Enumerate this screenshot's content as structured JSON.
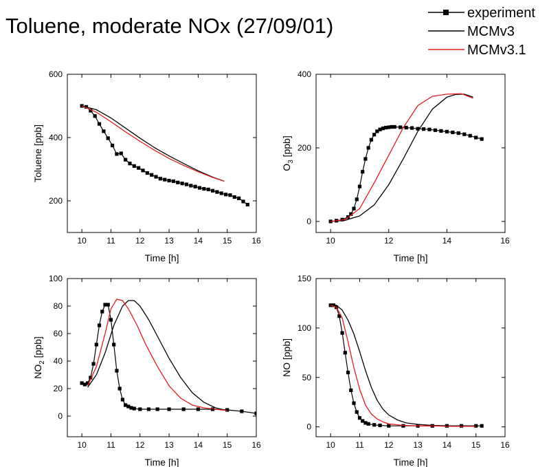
{
  "title": "Toluene, moderate NOx (27/09/01)",
  "legend": {
    "position": "top-right",
    "entries": [
      {
        "label": "experiment",
        "color": "#000000",
        "marker": "square"
      },
      {
        "label": "MCMv3",
        "color": "#000000",
        "marker": "none"
      },
      {
        "label": "MCMv3.1",
        "color": "#e41a1c",
        "marker": "none"
      }
    ]
  },
  "chart_data": [
    {
      "type": "line",
      "xlabel": "Time [h]",
      "ylabel": "Toluene [ppb]",
      "xlim": [
        9.5,
        16
      ],
      "ylim": [
        100,
        600
      ],
      "xticks": [
        10,
        11,
        12,
        13,
        14,
        15,
        16
      ],
      "yticks": [
        200,
        400,
        600
      ],
      "series": [
        {
          "name": "experiment",
          "color": "#000000",
          "marker": "square",
          "x": [
            10.0,
            10.15,
            10.3,
            10.45,
            10.6,
            10.75,
            10.9,
            11.05,
            11.2,
            11.35,
            11.5,
            11.65,
            11.8,
            11.95,
            12.1,
            12.25,
            12.4,
            12.55,
            12.7,
            12.85,
            13.0,
            13.15,
            13.3,
            13.45,
            13.6,
            13.75,
            13.9,
            14.05,
            14.2,
            14.35,
            14.5,
            14.65,
            14.8,
            14.95,
            15.1,
            15.25,
            15.4,
            15.55,
            15.7
          ],
          "y": [
            500,
            497,
            485,
            468,
            443,
            420,
            398,
            375,
            348,
            350,
            330,
            318,
            310,
            304,
            296,
            288,
            282,
            276,
            270,
            267,
            264,
            262,
            258,
            255,
            252,
            248,
            245,
            241,
            238,
            236,
            232,
            228,
            224,
            220,
            218,
            212,
            208,
            198,
            188
          ]
        },
        {
          "name": "MCMv3",
          "color": "#000000",
          "marker": "none",
          "x": [
            10.0,
            10.5,
            11.0,
            11.5,
            12.0,
            12.5,
            13.0,
            13.5,
            14.0,
            14.5,
            14.9
          ],
          "y": [
            500,
            488,
            462,
            430,
            398,
            368,
            342,
            318,
            295,
            275,
            262
          ]
        },
        {
          "name": "MCMv3.1",
          "color": "#e41a1c",
          "marker": "none",
          "x": [
            10.0,
            10.5,
            11.0,
            11.5,
            12.0,
            12.5,
            13.0,
            13.5,
            14.0,
            14.5,
            14.9
          ],
          "y": [
            500,
            480,
            450,
            418,
            388,
            360,
            334,
            312,
            292,
            274,
            262
          ]
        }
      ]
    },
    {
      "type": "line",
      "xlabel": "Time [h]",
      "ylabel": "O3 [ppb]",
      "ylabel_main": "O",
      "ylabel_sub": "3",
      "ylabel_tail": " [ppb]",
      "xlim": [
        9.5,
        16
      ],
      "ylim": [
        -30,
        400
      ],
      "xticks": [
        10,
        12,
        14,
        16
      ],
      "yticks": [
        0,
        200,
        400
      ],
      "series": [
        {
          "name": "experiment",
          "color": "#000000",
          "marker": "square",
          "x": [
            10.0,
            10.2,
            10.4,
            10.6,
            10.7,
            10.8,
            10.9,
            11.0,
            11.1,
            11.2,
            11.3,
            11.4,
            11.5,
            11.6,
            11.7,
            11.8,
            11.9,
            12.0,
            12.1,
            12.2,
            12.4,
            12.6,
            12.8,
            13.0,
            13.2,
            13.4,
            13.6,
            13.8,
            14.0,
            14.2,
            14.4,
            14.6,
            14.8,
            15.0,
            15.2
          ],
          "y": [
            0,
            2,
            5,
            12,
            20,
            35,
            60,
            95,
            135,
            170,
            200,
            222,
            236,
            245,
            250,
            253,
            255,
            256,
            257,
            257,
            256,
            255,
            254,
            252,
            251,
            250,
            248,
            246,
            244,
            242,
            240,
            237,
            233,
            228,
            224
          ]
        },
        {
          "name": "MCMv3",
          "color": "#000000",
          "marker": "none",
          "x": [
            10.0,
            10.5,
            11.0,
            11.5,
            12.0,
            12.5,
            13.0,
            13.5,
            14.0,
            14.3,
            14.6,
            14.9
          ],
          "y": [
            0,
            3,
            15,
            45,
            100,
            170,
            245,
            305,
            338,
            345,
            346,
            338
          ]
        },
        {
          "name": "MCMv3.1",
          "color": "#e41a1c",
          "marker": "none",
          "x": [
            10.0,
            10.5,
            11.0,
            11.5,
            12.0,
            12.5,
            13.0,
            13.5,
            14.0,
            14.5,
            14.9
          ],
          "y": [
            0,
            5,
            35,
            105,
            180,
            255,
            315,
            340,
            346,
            347,
            335
          ]
        }
      ]
    },
    {
      "type": "line",
      "xlabel": "Time [h]",
      "ylabel": "NO2 [ppb]",
      "ylabel_main": "NO",
      "ylabel_sub": "2",
      "ylabel_tail": " [ppb]",
      "xlim": [
        9.5,
        16
      ],
      "ylim": [
        -15,
        100
      ],
      "xticks": [
        10,
        11,
        12,
        13,
        14,
        15,
        16
      ],
      "yticks": [
        0,
        20,
        40,
        60,
        80,
        100
      ],
      "series": [
        {
          "name": "experiment",
          "color": "#000000",
          "marker": "square",
          "x": [
            10.0,
            10.1,
            10.2,
            10.3,
            10.4,
            10.5,
            10.6,
            10.7,
            10.8,
            10.9,
            11.0,
            11.1,
            11.2,
            11.3,
            11.4,
            11.5,
            11.6,
            11.7,
            11.8,
            12.0,
            12.3,
            12.6,
            13.0,
            13.5,
            14.0,
            14.5,
            15.0,
            15.5,
            16.0
          ],
          "y": [
            24,
            23,
            24,
            28,
            38,
            52,
            66,
            76,
            81,
            81,
            70,
            52,
            33,
            20,
            12,
            8,
            7,
            6,
            5.5,
            5,
            5,
            5,
            5,
            5,
            5,
            5,
            4.5,
            3.5,
            2
          ]
        },
        {
          "name": "MCMv3",
          "color": "#000000",
          "marker": "none",
          "x": [
            10.2,
            10.5,
            10.8,
            11.1,
            11.4,
            11.6,
            11.8,
            12.0,
            12.3,
            12.6,
            13.0,
            13.4,
            13.8,
            14.2,
            14.6,
            15.0
          ],
          "y": [
            21,
            30,
            46,
            66,
            80,
            84,
            84,
            80,
            70,
            58,
            42,
            28,
            17,
            10,
            6,
            4
          ]
        },
        {
          "name": "MCMv3.1",
          "color": "#e41a1c",
          "marker": "none",
          "x": [
            10.2,
            10.5,
            10.8,
            11.0,
            11.2,
            11.4,
            11.6,
            11.9,
            12.2,
            12.6,
            13.0,
            13.4,
            13.8,
            14.2,
            14.6,
            15.0
          ],
          "y": [
            22,
            36,
            60,
            78,
            85,
            84,
            78,
            66,
            52,
            36,
            22,
            13,
            8,
            6,
            5,
            4
          ]
        }
      ]
    },
    {
      "type": "line",
      "xlabel": "Time [h]",
      "ylabel": "NO [ppb]",
      "xlim": [
        9.5,
        16
      ],
      "ylim": [
        -10,
        150
      ],
      "xticks": [
        10,
        11,
        12,
        13,
        14,
        15,
        16
      ],
      "yticks": [
        0,
        50,
        100,
        150
      ],
      "series": [
        {
          "name": "experiment",
          "color": "#000000",
          "marker": "square",
          "x": [
            10.0,
            10.1,
            10.2,
            10.3,
            10.4,
            10.5,
            10.6,
            10.7,
            10.8,
            10.9,
            11.0,
            11.1,
            11.2,
            11.3,
            11.5,
            11.7,
            12.0,
            12.5,
            13.0,
            13.5,
            14.0,
            14.5,
            15.0,
            15.2
          ],
          "y": [
            123,
            123,
            121,
            112,
            95,
            75,
            55,
            37,
            24,
            15,
            9,
            6,
            4,
            3,
            2,
            1.5,
            1,
            1,
            1,
            1,
            1,
            1,
            1,
            1
          ]
        },
        {
          "name": "MCMv3",
          "color": "#000000",
          "marker": "none",
          "x": [
            10.0,
            10.2,
            10.4,
            10.6,
            10.8,
            11.0,
            11.2,
            11.4,
            11.6,
            11.8,
            12.0,
            12.3,
            12.6,
            13.0,
            13.5,
            14.0,
            14.5,
            15.0
          ],
          "y": [
            123,
            123,
            118,
            108,
            94,
            76,
            57,
            40,
            27,
            18,
            12,
            7,
            4,
            2.5,
            1.5,
            1,
            1,
            1
          ]
        },
        {
          "name": "MCMv3.1",
          "color": "#e41a1c",
          "marker": "none",
          "x": [
            10.0,
            10.2,
            10.4,
            10.6,
            10.8,
            11.0,
            11.2,
            11.4,
            11.6,
            11.8,
            12.0,
            12.5,
            13.0,
            13.5,
            14.0,
            14.5,
            15.0
          ],
          "y": [
            123,
            121,
            110,
            86,
            60,
            38,
            22,
            13,
            8,
            5,
            3,
            1.5,
            1,
            1,
            0.5,
            0.5,
            0.5
          ]
        }
      ]
    }
  ]
}
